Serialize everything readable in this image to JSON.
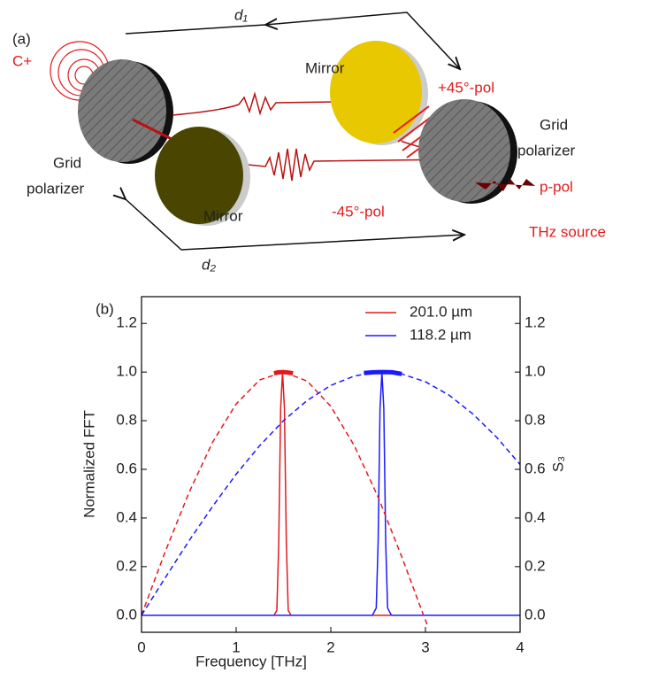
{
  "diagram": {
    "panel": "(a)",
    "d1": "d₁",
    "d2": "d₂",
    "c_plus": "C+",
    "mirror_top": "Mirror",
    "mirror_bottom": "Mirror",
    "pol_plus": "+45°-pol",
    "pol_minus": "-45°-pol",
    "p_pol": "p-pol",
    "thz_source": "THz source",
    "grid_polarizer_left": [
      "Grid",
      "polarizer"
    ],
    "grid_polarizer_right": [
      "Grid",
      "polarizer"
    ]
  },
  "chart_data": {
    "type": "line",
    "panel": "(b)",
    "xlabel": "Frequency [THz]",
    "ylabel": "Normalized FFT",
    "y2label": "S₃",
    "xlim": [
      0,
      4
    ],
    "xticks": [
      0,
      1,
      2,
      3,
      4
    ],
    "ylim": [
      -0.07,
      1.31
    ],
    "yticks": [
      {
        "value": 0,
        "label": "0.0"
      },
      {
        "value": 0.2,
        "label": "0.2"
      },
      {
        "value": 0.4,
        "label": "0.4"
      },
      {
        "value": 0.6,
        "label": "0.6"
      },
      {
        "value": 0.8,
        "label": "0.8"
      },
      {
        "value": 1,
        "label": "1.0"
      },
      {
        "value": 1.2,
        "label": "1.2"
      }
    ],
    "y2lim": [
      -0.07,
      1.31
    ],
    "y2ticks": [
      {
        "value": 0,
        "label": "0.0"
      },
      {
        "value": 0.2,
        "label": "0.2"
      },
      {
        "value": 0.4,
        "label": "0.4"
      },
      {
        "value": 0.6,
        "label": "0.6"
      },
      {
        "value": 0.8,
        "label": "0.8"
      },
      {
        "value": 1,
        "label": "1.0"
      },
      {
        "value": 1.2,
        "label": "1.2"
      }
    ],
    "legend": "upper right",
    "series": [
      {
        "name": "201.0 µm",
        "color": "#e31a1c",
        "linestyle": "solid",
        "linewidth": 1.5,
        "x": [
          0,
          1.4,
          1.43,
          1.45,
          1.47,
          1.49,
          1.51,
          1.53,
          1.55,
          1.58,
          4
        ],
        "values": [
          0,
          0,
          0.02,
          0.3,
          0.85,
          1.0,
          0.85,
          0.3,
          0.02,
          0,
          0
        ]
      },
      {
        "name": "118.2 µm",
        "color": "#1a1aff",
        "linestyle": "solid",
        "linewidth": 1.5,
        "x": [
          0,
          2.44,
          2.48,
          2.5,
          2.52,
          2.54,
          2.56,
          2.58,
          2.6,
          2.64,
          4
        ],
        "values": [
          0,
          0,
          0.03,
          0.3,
          0.85,
          1.0,
          0.85,
          0.3,
          0.03,
          0,
          0
        ]
      },
      {
        "color": "#e31a1c",
        "linestyle": "dashed",
        "linewidth": 1.5,
        "axis": "y2",
        "x": [
          0,
          0.25,
          0.5,
          0.75,
          1,
          1.25,
          1.5,
          1.75,
          2,
          2.25,
          2.5,
          2.75,
          2.98,
          3.02
        ],
        "values": [
          0,
          0.261,
          0.503,
          0.711,
          0.869,
          0.968,
          1.0,
          0.963,
          0.859,
          0.696,
          0.486,
          0.24,
          0,
          -0.04
        ]
      },
      {
        "color": "#1a1aff",
        "linestyle": "dashed",
        "linewidth": 1.5,
        "axis": "y2",
        "x": [
          0,
          0.25,
          0.5,
          0.75,
          1,
          1.25,
          1.5,
          1.75,
          2,
          2.25,
          2.5,
          2.75,
          3,
          3.25,
          3.5,
          3.75,
          4
        ],
        "values": [
          0,
          0.154,
          0.305,
          0.447,
          0.58,
          0.698,
          0.8,
          0.883,
          0.945,
          0.984,
          1.0,
          0.992,
          0.96,
          0.905,
          0.828,
          0.733,
          0.62
        ]
      },
      {
        "color": "#e31a1c",
        "linestyle": "solid",
        "linewidth": 5,
        "axis": "y2",
        "x": [
          1.4,
          1.45,
          1.5,
          1.55,
          1.6
        ],
        "values": [
          0.995,
          0.999,
          1.0,
          0.998,
          0.995
        ]
      },
      {
        "color": "#1a1aff",
        "linestyle": "solid",
        "linewidth": 5,
        "axis": "y2",
        "x": [
          2.35,
          2.45,
          2.55,
          2.65,
          2.75
        ],
        "values": [
          0.996,
          0.999,
          1.0,
          0.999,
          0.992
        ]
      }
    ]
  }
}
